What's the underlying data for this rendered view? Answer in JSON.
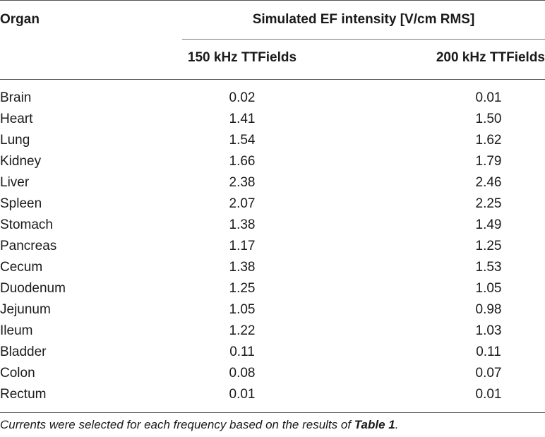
{
  "table": {
    "header": {
      "organ": "Organ",
      "group": "Simulated EF intensity [V/cm RMS]",
      "col1": "150 kHz TTFields",
      "col2": "200 kHz TTFields"
    },
    "rows": [
      {
        "organ": "Brain",
        "v150": "0.02",
        "v200": "0.01"
      },
      {
        "organ": "Heart",
        "v150": "1.41",
        "v200": "1.50"
      },
      {
        "organ": "Lung",
        "v150": "1.54",
        "v200": "1.62"
      },
      {
        "organ": "Kidney",
        "v150": "1.66",
        "v200": "1.79"
      },
      {
        "organ": "Liver",
        "v150": "2.38",
        "v200": "2.46"
      },
      {
        "organ": "Spleen",
        "v150": "2.07",
        "v200": "2.25"
      },
      {
        "organ": "Stomach",
        "v150": "1.38",
        "v200": "1.49"
      },
      {
        "organ": "Pancreas",
        "v150": "1.17",
        "v200": "1.25"
      },
      {
        "organ": "Cecum",
        "v150": "1.38",
        "v200": "1.53"
      },
      {
        "organ": "Duodenum",
        "v150": "1.25",
        "v200": "1.05"
      },
      {
        "organ": "Jejunum",
        "v150": "1.05",
        "v200": "0.98"
      },
      {
        "organ": "Ileum",
        "v150": "1.22",
        "v200": "1.03"
      },
      {
        "organ": "Bladder",
        "v150": "0.11",
        "v200": "0.11"
      },
      {
        "organ": "Colon",
        "v150": "0.08",
        "v200": "0.07"
      },
      {
        "organ": "Rectum",
        "v150": "0.01",
        "v200": "0.01"
      }
    ]
  },
  "footnote": {
    "text": "Currents were selected for each frequency based on the results of ",
    "ref": "Table 1",
    "end": "."
  }
}
